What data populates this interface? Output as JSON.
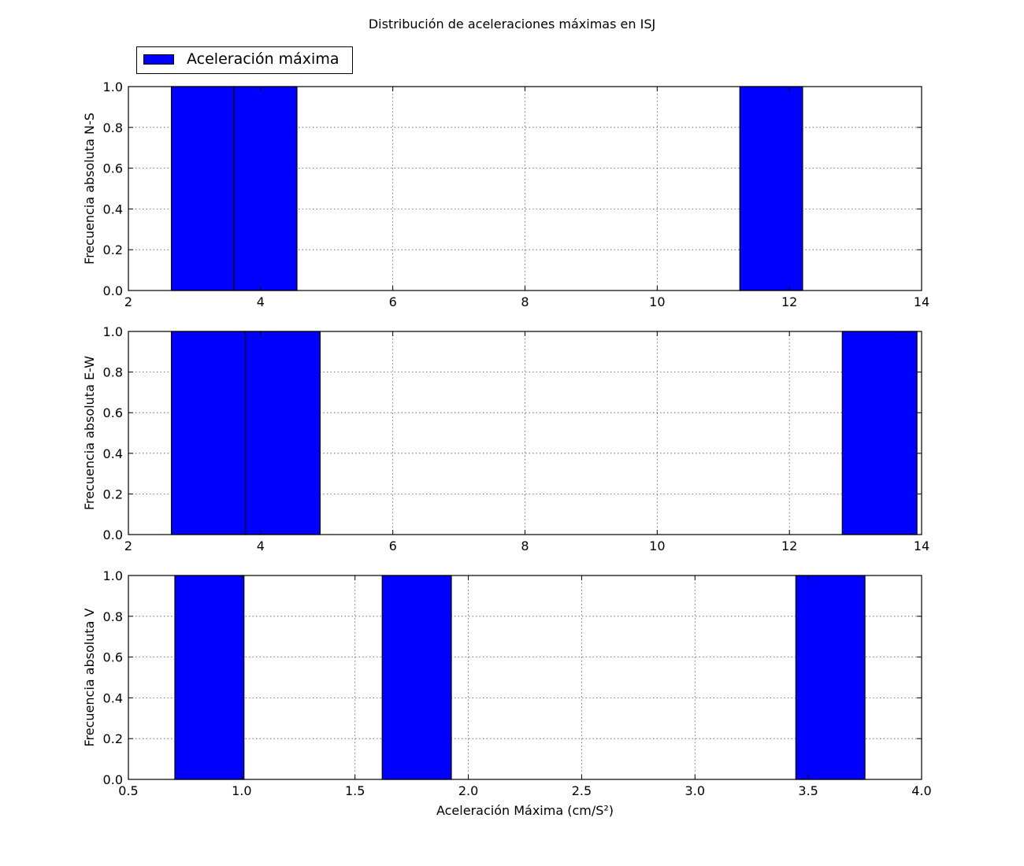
{
  "figure": {
    "suptitle": "Distribución de aceleraciones máximas en ISJ"
  },
  "legend": {
    "label": "Aceleración máxima",
    "color": "#0000ff",
    "placement": "upper-left, above first panel"
  },
  "chart_data": [
    {
      "type": "bar",
      "subtype": "histogram",
      "title": "",
      "xlabel": "",
      "ylabel": "Frecuencia absoluta N-S",
      "xlim": [
        2,
        14
      ],
      "ylim": [
        0,
        1.0
      ],
      "xticks": [
        "2",
        "4",
        "6",
        "8",
        "10",
        "12",
        "14"
      ],
      "yticks": [
        "0.0",
        "0.2",
        "0.4",
        "0.6",
        "0.8",
        "1.0"
      ],
      "grid": true,
      "color": "#0000ff",
      "bins": [
        {
          "start": 2.65,
          "end": 3.6,
          "count": 1
        },
        {
          "start": 3.6,
          "end": 4.55,
          "count": 1
        },
        {
          "start": 11.25,
          "end": 12.2,
          "count": 1
        }
      ]
    },
    {
      "type": "bar",
      "subtype": "histogram",
      "title": "",
      "xlabel": "",
      "ylabel": "Frecuencia absoluta E-W",
      "xlim": [
        2,
        14
      ],
      "ylim": [
        0,
        1.0
      ],
      "xticks": [
        "2",
        "4",
        "6",
        "8",
        "10",
        "12",
        "14"
      ],
      "yticks": [
        "0.0",
        "0.2",
        "0.4",
        "0.6",
        "0.8",
        "1.0"
      ],
      "grid": true,
      "color": "#0000ff",
      "bins": [
        {
          "start": 2.65,
          "end": 3.77,
          "count": 1
        },
        {
          "start": 3.77,
          "end": 4.9,
          "count": 1
        },
        {
          "start": 12.8,
          "end": 13.93,
          "count": 1
        }
      ]
    },
    {
      "type": "bar",
      "subtype": "histogram",
      "title": "",
      "xlabel": "Aceleración Máxima (cm/S²)",
      "ylabel": "Frecuencia absoluta V",
      "xlim": [
        0.5,
        4.0
      ],
      "ylim": [
        0,
        1.0
      ],
      "xticks": [
        "0.5",
        "1.0",
        "1.5",
        "2.0",
        "2.5",
        "3.0",
        "3.5",
        "4.0"
      ],
      "yticks": [
        "0.0",
        "0.2",
        "0.4",
        "0.6",
        "0.8",
        "1.0"
      ],
      "grid": true,
      "color": "#0000ff",
      "bins": [
        {
          "start": 0.705,
          "end": 1.01,
          "count": 1
        },
        {
          "start": 1.62,
          "end": 1.925,
          "count": 1
        },
        {
          "start": 3.445,
          "end": 3.75,
          "count": 1
        }
      ]
    }
  ]
}
